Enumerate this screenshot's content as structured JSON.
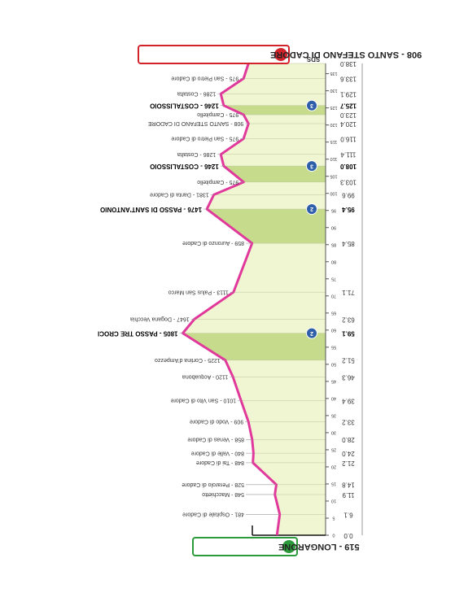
{
  "chart_data": {
    "type": "profile",
    "sds_label": "SDS",
    "start_label": "519 - LONGARONE",
    "finish_label": "908 - SANTO STEFANO DI CADORE",
    "km_ticks": [
      0,
      5,
      10,
      15,
      20,
      25,
      30,
      35,
      40,
      45,
      50,
      55,
      60,
      65,
      70,
      75,
      80,
      85,
      90,
      95,
      100,
      105,
      110,
      115,
      120,
      125,
      130,
      135
    ],
    "points": [
      {
        "km": 0,
        "km_label": "0.0",
        "altitude": 519
      },
      {
        "km": 6.1,
        "km_label": "6.1",
        "altitude": 481,
        "label": "481 - Ospitale di Cadore"
      },
      {
        "km": 11.9,
        "km_label": "11.9",
        "altitude": 548,
        "label": "548 - Macchietto"
      },
      {
        "km": 14.8,
        "km_label": "14.8",
        "altitude": 528,
        "label": "528 - Perarolo di Cadore"
      },
      {
        "km": 21.2,
        "km_label": "21.2",
        "altitude": 848,
        "label": "848 - Tai di Cadore"
      },
      {
        "km": 24,
        "km_label": "24.0",
        "altitude": 840,
        "label": "840 - Valle di Cadore"
      },
      {
        "km": 28,
        "km_label": "28.0",
        "altitude": 858,
        "label": "858 - Venas di Cadore"
      },
      {
        "km": 33.2,
        "km_label": "33.2",
        "altitude": 909,
        "label": "909 - Vodo di Cadore"
      },
      {
        "km": 39.4,
        "km_label": "39.4",
        "altitude": 1010,
        "label": "1010 - San Vito di Cadore"
      },
      {
        "km": 46.3,
        "km_label": "46.3",
        "altitude": 1120,
        "label": "1120 - Acquabona"
      },
      {
        "km": 51.2,
        "km_label": "51.2",
        "altitude": 1225,
        "label": "1225 - Cortina d'Ampezzo"
      },
      {
        "km": 59.1,
        "km_label": "59.1",
        "altitude": 1805,
        "label": "1805 - PASSO TRE CROCI",
        "bold": true
      },
      {
        "km": 63.2,
        "km_label": "63.2",
        "altitude": 1647,
        "label": "1647 - Dogana Vecchia"
      },
      {
        "km": 71.1,
        "km_label": "71.1",
        "altitude": 1113,
        "label": "1113 - Palus San Marco"
      },
      {
        "km": 85.4,
        "km_label": "85.4",
        "altitude": 859,
        "label": "859 - Auronzo di Cadore"
      },
      {
        "km": 95.4,
        "km_label": "95.4",
        "altitude": 1476,
        "label": "1476 - PASSO DI SANT'ANTONIO",
        "bold": true
      },
      {
        "km": 99.6,
        "km_label": "99.6",
        "altitude": 1381,
        "label": "1381 - Danta di Cadore"
      },
      {
        "km": 103.3,
        "km_label": "103.3",
        "altitude": 975,
        "label": "975 - Campitello"
      },
      {
        "km": 108,
        "km_label": "108.0",
        "altitude": 1246,
        "label": "1246 - COSTALISSOIO",
        "bold": true
      },
      {
        "km": 111.4,
        "km_label": "111.4",
        "altitude": 1286,
        "label": "1286 - Costalta"
      },
      {
        "km": 116,
        "km_label": "116.0",
        "altitude": 975,
        "label": "975 - San Pietro di Cadore"
      },
      {
        "km": 120.4,
        "km_label": "120.4",
        "altitude": 908,
        "label": "908 - SANTO STEFANO DI CADORE"
      },
      {
        "km": 123,
        "km_label": "123.0",
        "altitude": 975,
        "label": "975 - Campitello"
      },
      {
        "km": 125.7,
        "km_label": "125.7",
        "altitude": 1246,
        "label": "1246 - COSTALISSOIO",
        "bold": true
      },
      {
        "km": 129.1,
        "km_label": "129.1",
        "altitude": 1286,
        "label": "1286 - Costalta"
      },
      {
        "km": 133.6,
        "km_label": "133.6",
        "altitude": 975,
        "label": "975 - San Pietro di Cadore"
      },
      {
        "km": 138,
        "km_label": "138.0",
        "altitude": 908
      }
    ],
    "gpm": [
      {
        "km": 59.1,
        "from_km": 51.2,
        "category": "2"
      },
      {
        "km": 95.4,
        "from_km": 85.4,
        "category": "2"
      },
      {
        "km": 108,
        "from_km": 103.3,
        "category": "3"
      },
      {
        "km": 125.7,
        "from_km": 123,
        "category": "3"
      }
    ]
  }
}
